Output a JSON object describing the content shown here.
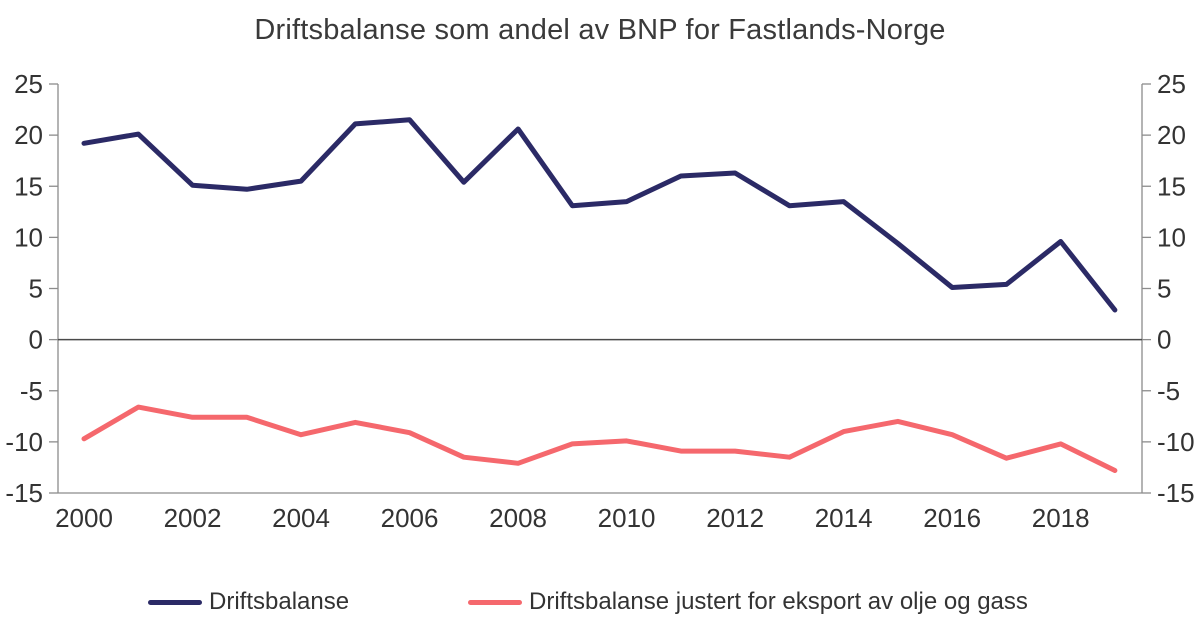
{
  "title": "Driftsbalanse som andel av BNP for Fastlands-Norge",
  "colors": {
    "series_driftsbalanse": "#2b2a66",
    "series_justert": "#f5686d",
    "axis_line": "#8c8c8c",
    "zero_line": "#4a4a4a",
    "tick_text": "#333333",
    "background": "#ffffff"
  },
  "chart_data": {
    "type": "line",
    "title": "Driftsbalanse som andel av BNP for Fastlands-Norge",
    "x": [
      2000,
      2001,
      2002,
      2003,
      2004,
      2005,
      2006,
      2007,
      2008,
      2009,
      2010,
      2011,
      2012,
      2013,
      2014,
      2015,
      2016,
      2017,
      2018,
      2019
    ],
    "series": [
      {
        "name": "Driftsbalanse",
        "color": "#2b2a66",
        "values": [
          19.2,
          20.1,
          15.1,
          14.7,
          15.5,
          21.1,
          21.5,
          15.4,
          20.6,
          13.1,
          13.5,
          16.0,
          16.3,
          13.1,
          13.5,
          9.4,
          5.1,
          5.4,
          9.6,
          2.9
        ]
      },
      {
        "name": "Driftsbalanse justert for eksport av olje og gass",
        "color": "#f5686d",
        "values": [
          -9.7,
          -6.6,
          -7.6,
          -7.6,
          -9.3,
          -8.1,
          -9.1,
          -11.5,
          -12.1,
          -10.2,
          -9.9,
          -10.9,
          -10.9,
          -11.5,
          -9.0,
          -8.0,
          -9.3,
          -11.6,
          -10.2,
          -12.8
        ]
      }
    ],
    "xlabel": "",
    "ylabel": "",
    "ylim": [
      -15,
      25
    ],
    "y_ticks": [
      25,
      20,
      15,
      10,
      5,
      0,
      -5,
      -10,
      -15
    ],
    "x_tick_labels": [
      "2000",
      "2002",
      "2004",
      "2006",
      "2008",
      "2010",
      "2012",
      "2014",
      "2016",
      "2018"
    ],
    "grid": false,
    "zero_line": true,
    "y_axis_sides": [
      "left",
      "right"
    ],
    "legend_position": "bottom"
  },
  "legend": {
    "items": [
      {
        "label": "Driftsbalanse"
      },
      {
        "label": "Driftsbalanse justert for eksport av olje og gass"
      }
    ]
  }
}
